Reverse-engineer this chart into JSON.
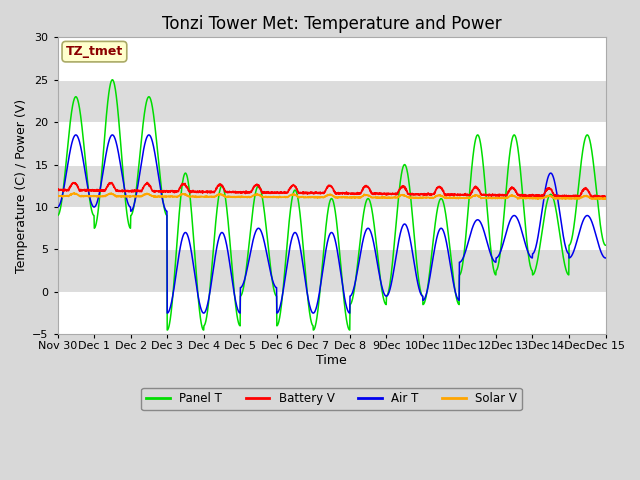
{
  "title": "Tonzi Tower Met: Temperature and Power",
  "xlabel": "Time",
  "ylabel": "Temperature (C) / Power (V)",
  "ylim": [
    -5,
    30
  ],
  "yticks": [
    -5,
    0,
    5,
    10,
    15,
    20,
    25,
    30
  ],
  "xlim_start": 0,
  "xlim_end": 15,
  "xtick_labels": [
    "Nov 30",
    "Dec 1",
    "Dec 2",
    "Dec 3",
    "Dec 4",
    "Dec 5",
    "Dec 6",
    "Dec 7",
    "Dec 8",
    "9Dec",
    "10Dec",
    "11Dec",
    "12Dec",
    "13Dec",
    "14Dec",
    "Dec 15"
  ],
  "annotation_text": "TZ_tmet",
  "annotation_color": "#8B0000",
  "annotation_bg": "#FFFFCC",
  "legend_labels": [
    "Panel T",
    "Battery V",
    "Air T",
    "Solar V"
  ],
  "panel_t_color": "#00DD00",
  "battery_v_color": "#FF0000",
  "air_t_color": "#0000EE",
  "solar_v_color": "#FFA500",
  "fig_bg_color": "#D8D8D8",
  "plot_bg_color": "#E8E8E8",
  "stripe_light": "#ECECEC",
  "stripe_dark": "#DCDCDC",
  "grid_color": "#FFFFFF",
  "title_fontsize": 12,
  "axis_label_fontsize": 9,
  "tick_fontsize": 8,
  "panel_t_data": {
    "day_params": [
      {
        "night_low": 9.0,
        "day_high": 23.0
      },
      {
        "night_low": 7.5,
        "day_high": 25.0
      },
      {
        "night_low": 9.0,
        "day_high": 23.0
      },
      {
        "night_low": -4.5,
        "day_high": 14.0
      },
      {
        "night_low": -4.0,
        "day_high": 12.5
      },
      {
        "night_low": -0.5,
        "day_high": 12.5
      },
      {
        "night_low": -4.0,
        "day_high": 12.0
      },
      {
        "night_low": -4.5,
        "day_high": 11.0
      },
      {
        "night_low": -1.5,
        "day_high": 11.0
      },
      {
        "night_low": -0.5,
        "day_high": 15.0
      },
      {
        "night_low": -1.5,
        "day_high": 11.0
      },
      {
        "night_low": 2.0,
        "day_high": 18.5
      },
      {
        "night_low": 2.5,
        "day_high": 18.5
      },
      {
        "night_low": 2.0,
        "day_high": 11.5
      },
      {
        "night_low": 5.5,
        "day_high": 18.5
      }
    ]
  },
  "air_t_data": {
    "day_params": [
      {
        "night_low": 10.0,
        "day_high": 18.5
      },
      {
        "night_low": 10.0,
        "day_high": 18.5
      },
      {
        "night_low": 9.5,
        "day_high": 18.5
      },
      {
        "night_low": -2.5,
        "day_high": 7.0
      },
      {
        "night_low": -2.5,
        "day_high": 7.0
      },
      {
        "night_low": 0.5,
        "day_high": 7.5
      },
      {
        "night_low": -2.5,
        "day_high": 7.0
      },
      {
        "night_low": -2.5,
        "day_high": 7.0
      },
      {
        "night_low": -0.5,
        "day_high": 7.5
      },
      {
        "night_low": -0.5,
        "day_high": 8.0
      },
      {
        "night_low": -1.0,
        "day_high": 7.5
      },
      {
        "night_low": 3.5,
        "day_high": 8.5
      },
      {
        "night_low": 4.0,
        "day_high": 9.0
      },
      {
        "night_low": 4.5,
        "day_high": 14.0
      },
      {
        "night_low": 4.0,
        "day_high": 9.0
      }
    ]
  },
  "battery_v_data": {
    "base": 12.0,
    "day_bump": 0.9,
    "trend": -0.05
  },
  "solar_v_data": {
    "base": 11.3,
    "day_bump": 0.3,
    "trend": -0.02
  }
}
